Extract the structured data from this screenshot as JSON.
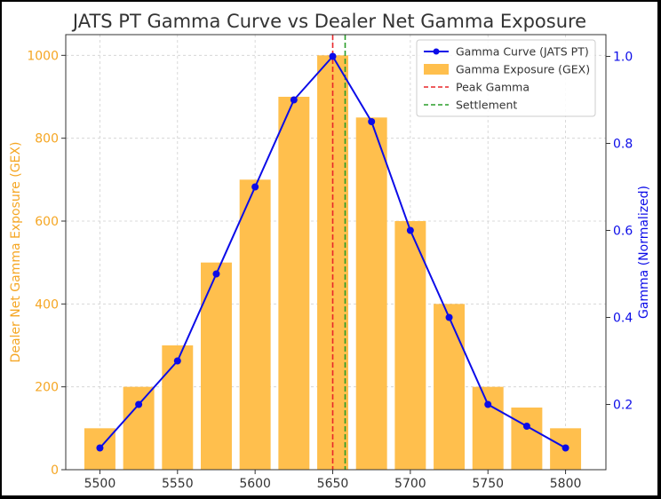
{
  "chart_data": {
    "type": "bar",
    "title": "JATS PT Gamma Curve vs Dealer Net Gamma Exposure",
    "xlabel": "",
    "ylabel": "Dealer Net Gamma Exposure (GEX)",
    "y2label": "Gamma (Normalized)",
    "x": [
      5500,
      5525,
      5550,
      5575,
      5600,
      5625,
      5650,
      5675,
      5700,
      5725,
      5750,
      5775,
      5800
    ],
    "xticks": [
      "5500",
      "5550",
      "5600",
      "5650",
      "5700",
      "5750",
      "5800"
    ],
    "yticks": [
      "0",
      "200",
      "400",
      "600",
      "800",
      "1000"
    ],
    "y2ticks": [
      "0.2",
      "0.4",
      "0.6",
      "0.8",
      "1.0"
    ],
    "ylim": [
      0,
      1050
    ],
    "y2lim": [
      0.05,
      1.05
    ],
    "xlim": [
      5478,
      5826
    ],
    "grid": true,
    "legend_position": "top-right",
    "series": [
      {
        "name": "Gamma Exposure (GEX)",
        "type": "bar",
        "axis": "left",
        "values": [
          100,
          200,
          300,
          500,
          700,
          900,
          1000,
          850,
          600,
          400,
          200,
          150,
          100
        ]
      },
      {
        "name": "Gamma Curve (JATS PT)",
        "type": "line",
        "axis": "right",
        "values": [
          0.1,
          0.2,
          0.3,
          0.5,
          0.7,
          0.9,
          1.0,
          0.85,
          0.6,
          0.4,
          0.2,
          0.15,
          0.1
        ]
      }
    ],
    "vlines": [
      {
        "name": "Peak Gamma",
        "x": 5650,
        "color": "#e8262a"
      },
      {
        "name": "Settlement",
        "x": 5658,
        "color": "#2a9d2a"
      }
    ],
    "colors": {
      "bar": "#ffbf4d",
      "line": "#0c0ce8",
      "left_axis": "#f5a623",
      "right_axis": "#0c0ce8",
      "grid": "#d0d0d0"
    }
  }
}
